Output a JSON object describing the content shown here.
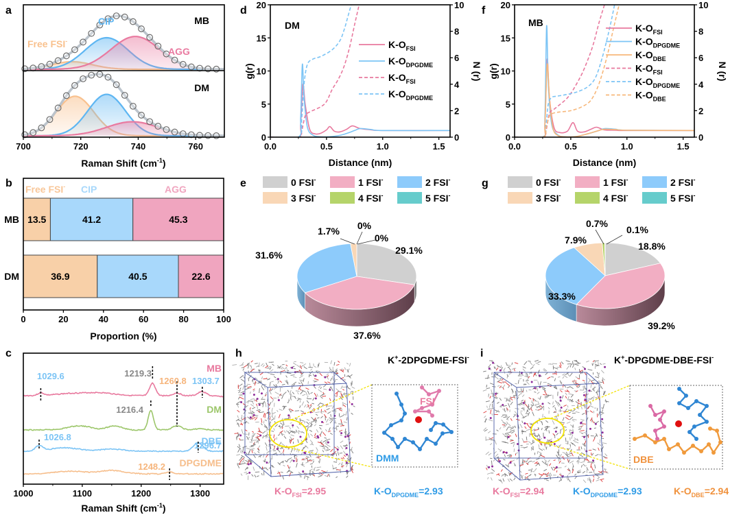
{
  "panel_labels": {
    "a": "a",
    "b": "b",
    "c": "c",
    "d": "d",
    "e": "e",
    "f": "f",
    "g": "g",
    "h": "h",
    "i": "i"
  },
  "colors": {
    "free": "#F9C18E",
    "cip": "#5EB6F2",
    "agg": "#E97AA0",
    "bar_free": "#F8D0A8",
    "bar_cip": "#A8D8FB",
    "bar_agg": "#F0A5BF",
    "pink": "#E8799E",
    "blue": "#7CC4F5",
    "orange": "#F7B77A",
    "green": "#9CC66A",
    "grey": "#8C8C8C",
    "pie0": "#D0D0D0",
    "pie1": "#F2AEC3",
    "pie2": "#8DCBFB",
    "pie3": "#F9D7B6",
    "pie4": "#B5D46A",
    "pie5": "#66CCCC",
    "text_blue": "#3BA0E8",
    "text_orange": "#F0913C",
    "text_pink": "#E0709A"
  },
  "chart_data": [
    {
      "id": "a",
      "type": "line",
      "title": "",
      "xlabel": "Raman Shift (cm-1)",
      "xlim": [
        700,
        770
      ],
      "xticks": [
        "700",
        "720",
        "740",
        "760"
      ],
      "subplots": [
        {
          "label": "MB",
          "components": [
            {
              "name": "Free FSI-",
              "center": 717,
              "width": 7,
              "amp": 0.12
            },
            {
              "name": "CIP",
              "center": 729,
              "width": 7.5,
              "amp": 0.5
            },
            {
              "name": "AGG",
              "center": 739,
              "width": 8.5,
              "amp": 0.52
            }
          ]
        },
        {
          "label": "DM",
          "components": [
            {
              "name": "Free FSI-",
              "center": 718,
              "width": 6.5,
              "amp": 0.62
            },
            {
              "name": "CIP",
              "center": 729,
              "width": 6.5,
              "amp": 0.65
            },
            {
              "name": "AGG",
              "center": 738,
              "width": 9,
              "amp": 0.22
            }
          ]
        }
      ],
      "legend": {
        "free": "Free FSI",
        "cip": "CIP",
        "agg": "AGG"
      }
    },
    {
      "id": "b",
      "type": "bar",
      "orientation": "horizontal-stacked",
      "xlabel": "Proportion (%)",
      "xlim": [
        0,
        100
      ],
      "xticks": [
        "0",
        "20",
        "40",
        "60",
        "80",
        "100"
      ],
      "categories": [
        "MB",
        "DM"
      ],
      "series": [
        {
          "name": "Free FSI-",
          "values": [
            13.5,
            36.9
          ]
        },
        {
          "name": "CIP",
          "values": [
            41.2,
            40.5
          ]
        },
        {
          "name": "AGG",
          "values": [
            45.3,
            22.6
          ]
        }
      ],
      "value_labels": [
        [
          "13.5",
          "41.2",
          "45.3"
        ],
        [
          "36.9",
          "40.5",
          "22.6"
        ]
      ],
      "legend": {
        "free": "Free FSI",
        "cip": "CIP",
        "agg": "AGG"
      }
    },
    {
      "id": "c",
      "type": "line",
      "xlabel": "Raman Shift (cm-1)",
      "xlim": [
        1000,
        1340
      ],
      "xticks": [
        "1000",
        "1100",
        "1200",
        "1300"
      ],
      "series": [
        {
          "name": "MB",
          "peaks": [
            1029.6,
            1219.3,
            1260.8,
            1303.7
          ]
        },
        {
          "name": "DM",
          "peaks": [
            1216.4,
            1260.8
          ]
        },
        {
          "name": "DBE",
          "peaks": [
            1026.8,
            1296.7
          ]
        },
        {
          "name": "DPGDME",
          "peaks": [
            1248.2
          ]
        }
      ],
      "annotations": [
        {
          "text": "1029.6",
          "x": 1029.6,
          "color": "blue"
        },
        {
          "text": "1219.3",
          "x": 1219.3,
          "color": "grey"
        },
        {
          "text": "1260.8",
          "x": 1260.8,
          "color": "orange"
        },
        {
          "text": "1303.7",
          "x": 1303.7,
          "color": "blue"
        },
        {
          "text": "1216.4",
          "x": 1216.4,
          "color": "grey"
        },
        {
          "text": "1026.8",
          "x": 1026.8,
          "color": "blue"
        },
        {
          "text": "1296.7",
          "x": 1296.7,
          "color": "blue"
        },
        {
          "text": "1248.2",
          "x": 1248.2,
          "color": "orange"
        }
      ]
    },
    {
      "id": "d",
      "type": "line",
      "title": "DM",
      "xlabel": "Distance (nm)",
      "ylabel": "g(r)",
      "y2label": "N (r)",
      "xlim": [
        0,
        1.6
      ],
      "ylim": [
        0,
        20
      ],
      "y2lim": [
        0,
        10
      ],
      "xticks": [
        "0.0",
        "0.5",
        "1.0",
        "1.5"
      ],
      "yticks": [
        "0",
        "5",
        "10",
        "15",
        "20"
      ],
      "y2ticks": [
        "0",
        "2",
        "4",
        "6",
        "8",
        "10"
      ],
      "series": [
        {
          "name": "K-O FSI g(r)",
          "legend": "K-O",
          "sub": "FSI",
          "style": "solid",
          "color": "pink",
          "x": [
            0,
            0.25,
            0.27,
            0.29,
            0.31,
            0.35,
            0.4,
            0.45,
            0.5,
            0.53,
            0.57,
            0.62,
            0.68,
            0.73,
            0.8,
            0.9,
            1.0,
            1.6
          ],
          "y": [
            0,
            0,
            2,
            8,
            5,
            1.2,
            0.5,
            0.6,
            1.1,
            1.6,
            0.9,
            0.8,
            1.2,
            1.7,
            1.3,
            1.1,
            1.0,
            1.0
          ]
        },
        {
          "name": "K-O DPGDME g(r)",
          "legend": "K-O",
          "sub": "DPGDME",
          "style": "solid",
          "color": "blue",
          "x": [
            0,
            0.25,
            0.27,
            0.285,
            0.3,
            0.33,
            0.38,
            0.45,
            0.55,
            0.65,
            0.75,
            0.8,
            0.9,
            1.0,
            1.6
          ],
          "y": [
            0,
            0,
            3,
            11,
            6,
            1.5,
            0.3,
            0.05,
            0.1,
            0.4,
            1.0,
            1.3,
            1.15,
            1.0,
            1.0
          ]
        },
        {
          "name": "K-O FSI N(r)",
          "legend": "K-O",
          "sub": "FSI",
          "style": "dashed",
          "color": "pink",
          "axis": "y2",
          "x": [
            0,
            0.25,
            0.28,
            0.31,
            0.35,
            0.45,
            0.5,
            0.55,
            0.6,
            0.65,
            0.7,
            0.75,
            0.79
          ],
          "y": [
            0,
            0,
            0.5,
            1.6,
            1.9,
            2.3,
            2.7,
            3.6,
            4.3,
            5.2,
            6.6,
            8.5,
            10
          ]
        },
        {
          "name": "K-O DPGDME N(r)",
          "legend": "K-O",
          "sub": "DPGDME",
          "style": "dashed",
          "color": "blue",
          "axis": "y2",
          "x": [
            0,
            0.25,
            0.28,
            0.3,
            0.33,
            0.38,
            0.45,
            0.55,
            0.62,
            0.66,
            0.69,
            0.72
          ],
          "y": [
            0,
            0,
            1.5,
            4.0,
            5.5,
            5.9,
            6.1,
            6.6,
            7.3,
            8.2,
            9.1,
            10
          ]
        }
      ]
    },
    {
      "id": "f",
      "type": "line",
      "title": "MB",
      "xlabel": "Distance (nm)",
      "ylabel": "g(r)",
      "y2label": "N (r)",
      "xlim": [
        0,
        1.6
      ],
      "ylim": [
        0,
        20
      ],
      "y2lim": [
        0,
        10
      ],
      "xticks": [
        "0.0",
        "0.5",
        "1.0",
        "1.5"
      ],
      "yticks": [
        "0",
        "5",
        "10",
        "15",
        "20"
      ],
      "y2ticks": [
        "0",
        "2",
        "4",
        "6",
        "8",
        "10"
      ],
      "series": [
        {
          "name": "K-O FSI g(r)",
          "legend": "K-O",
          "sub": "FSI",
          "style": "solid",
          "color": "pink",
          "x": [
            0,
            0.25,
            0.27,
            0.29,
            0.31,
            0.35,
            0.4,
            0.47,
            0.52,
            0.56,
            0.62,
            0.68,
            0.73,
            0.8,
            0.9,
            1.0,
            1.6
          ],
          "y": [
            0,
            0,
            2,
            11.8,
            6,
            1.5,
            0.7,
            0.9,
            2.2,
            0.9,
            0.8,
            1.2,
            1.5,
            1.1,
            1.05,
            1.0,
            1.0
          ]
        },
        {
          "name": "K-O DPGDME g(r)",
          "legend": "K-O",
          "sub": "DPGDME",
          "style": "solid",
          "color": "blue",
          "x": [
            0,
            0.25,
            0.27,
            0.285,
            0.3,
            0.33,
            0.38,
            0.45,
            0.55,
            0.65,
            0.75,
            0.8,
            0.9,
            1.0,
            1.6
          ],
          "y": [
            0,
            0,
            3,
            16.8,
            8,
            2,
            0.4,
            0.05,
            0.1,
            0.5,
            1.0,
            1.3,
            1.2,
            1.05,
            1.0
          ]
        },
        {
          "name": "K-O DBE g(r)",
          "legend": "K-O",
          "sub": "DBE",
          "style": "solid",
          "color": "orange",
          "x": [
            0,
            0.25,
            0.27,
            0.29,
            0.31,
            0.34,
            0.38,
            0.45,
            0.55,
            0.65,
            0.75,
            0.8,
            0.9,
            1.0,
            1.6
          ],
          "y": [
            0,
            0,
            2,
            11,
            6,
            1.5,
            0.3,
            0.05,
            0.1,
            0.5,
            1.0,
            1.2,
            1.15,
            1.05,
            1.0
          ]
        },
        {
          "name": "K-O FSI N(r)",
          "legend": "K-O",
          "sub": "FSI",
          "style": "dashed",
          "color": "pink",
          "axis": "y2",
          "x": [
            0,
            0.25,
            0.28,
            0.31,
            0.35,
            0.45,
            0.5,
            0.55,
            0.6,
            0.65,
            0.7,
            0.75,
            0.8
          ],
          "y": [
            0,
            0,
            0.5,
            1.8,
            2.1,
            2.8,
            3.3,
            4.0,
            4.8,
            5.8,
            7.0,
            8.6,
            10
          ]
        },
        {
          "name": "K-O DPGDME N(r)",
          "legend": "K-O",
          "sub": "DPGDME",
          "style": "dashed",
          "color": "blue",
          "axis": "y2",
          "x": [
            0,
            0.25,
            0.28,
            0.3,
            0.33,
            0.38,
            0.45,
            0.55,
            0.65,
            0.72,
            0.78,
            0.84,
            0.89
          ],
          "y": [
            0,
            0,
            1.0,
            2.5,
            3.0,
            3.1,
            3.2,
            3.4,
            3.8,
            4.5,
            6.0,
            8.0,
            10
          ]
        },
        {
          "name": "K-O DBE N(r)",
          "legend": "K-O",
          "sub": "DBE",
          "style": "dashed",
          "color": "orange",
          "axis": "y2",
          "x": [
            0,
            0.25,
            0.28,
            0.31,
            0.34,
            0.4,
            0.5,
            0.6,
            0.68,
            0.75,
            0.82,
            0.88,
            0.93
          ],
          "y": [
            0,
            0,
            0.7,
            1.6,
            1.8,
            1.9,
            2.0,
            2.3,
            2.8,
            4.0,
            6.0,
            8.2,
            10
          ]
        }
      ]
    },
    {
      "id": "e",
      "type": "pie",
      "legend": [
        "0 FSI",
        "1 FSI",
        "2 FSI",
        "3 FSI",
        "4 FSI",
        "5 FSI"
      ],
      "values": [
        29.1,
        37.6,
        31.6,
        1.7,
        0,
        0
      ],
      "labels": [
        "29.1%",
        "37.6%",
        "31.6%",
        "1.7%",
        "0%",
        "0%"
      ]
    },
    {
      "id": "g",
      "type": "pie",
      "legend": [
        "0 FSI",
        "1 FSI",
        "2 FSI",
        "3 FSI",
        "4 FSI",
        "5 FSI"
      ],
      "values": [
        18.8,
        39.2,
        33.3,
        7.9,
        0.7,
        0.1
      ],
      "labels": [
        "18.8%",
        "39.2%",
        "33.3%",
        "7.9%",
        "0.7%",
        "0.1%"
      ]
    }
  ],
  "panel_h": {
    "title": "K+-2DPGDME-FSI-",
    "title_parts": [
      "K",
      "+",
      "-2DPGDME-FSI",
      "-"
    ],
    "inset_labels": {
      "fsi": "FSI",
      "solvent": "DMM"
    },
    "bond_lengths": [
      {
        "prefix": "K-O",
        "sub": "FSI",
        "value": "=2.95",
        "color": "pink"
      },
      {
        "prefix": "K-O",
        "sub": "DPGDME",
        "value": "=2.93",
        "color": "blue"
      }
    ]
  },
  "panel_i": {
    "title_parts": [
      "K",
      "+",
      "-DPGDME-DBE-FSI",
      "-"
    ],
    "inset_labels": {
      "solvent": "DBE"
    },
    "bond_lengths": [
      {
        "prefix": "K-O",
        "sub": "FSI",
        "value": "=2.94",
        "color": "pink"
      },
      {
        "prefix": "K-O",
        "sub": "DPGDME",
        "value": "=2.93",
        "color": "blue"
      },
      {
        "prefix": "K-O",
        "sub": "DBE",
        "value": "=2.94",
        "color": "orange"
      }
    ]
  },
  "axis_text": {
    "raman": "Raman Shift (cm",
    "raman_sup": "-1",
    "raman_close": ")",
    "proportion": "Proportion (%)",
    "distance": "Distance (nm)",
    "gr": "g(r)",
    "nr": "N (r)",
    "fsi_sup": "-"
  }
}
